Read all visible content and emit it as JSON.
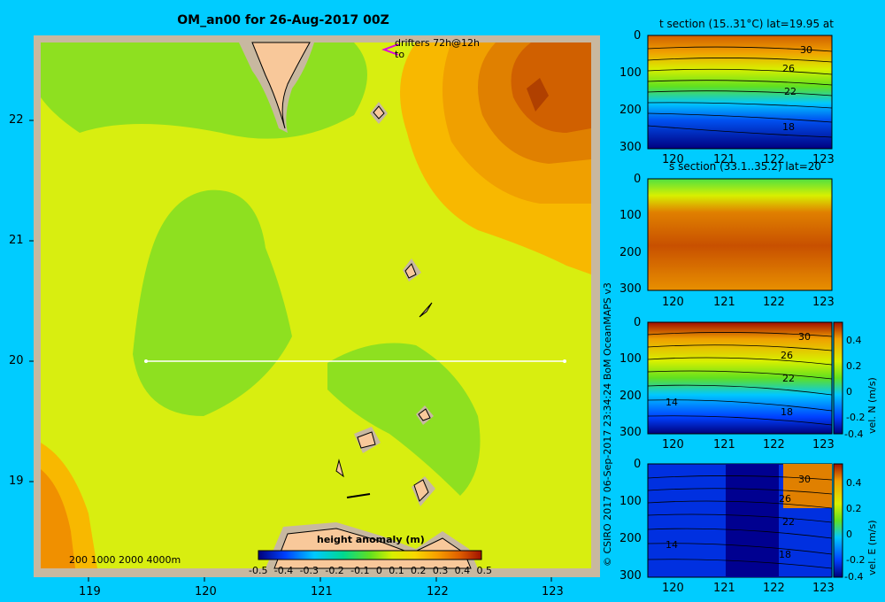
{
  "title": "OM_an00 for 26-Aug-2017 00Z",
  "map": {
    "y_ticks": [
      "22",
      "21",
      "20",
      "19"
    ],
    "x_ticks": [
      "119",
      "120",
      "121",
      "122",
      "123"
    ],
    "drifters_label": "drifters 72h@12h",
    "drifters_sub": "to",
    "depth_legend": "200  1000  2000  4000m",
    "colorbar_title": "height anomaly (m)",
    "colorbar_ticks": [
      "-0.5",
      "-0.4",
      "-0.3",
      "-0.2",
      "-0.1",
      "0",
      "0.1",
      "0.2",
      "0.3",
      "0.4",
      "0.5"
    ],
    "colors": {
      "background": "#00ccff",
      "land": "#f8c89a",
      "section_line": "#ffffff"
    }
  },
  "credit": "© CSIRO 2017   06-Sep-2017 23:34:24 BoM OceanMAPS v3",
  "panels": {
    "t_section": {
      "title": "t section (15..31°C) lat=19.95 at",
      "y_ticks": [
        "0",
        "100",
        "200",
        "300"
      ],
      "x_ticks": [
        "120",
        "121",
        "122",
        "123"
      ],
      "contour_labels": [
        "30",
        "26",
        "22",
        "18"
      ]
    },
    "s_section": {
      "title": "s section (33.1..35.2) lat=20",
      "y_ticks": [
        "0",
        "100",
        "200",
        "300"
      ],
      "x_ticks": [
        "120",
        "121",
        "122",
        "123"
      ]
    },
    "vel_n": {
      "y_ticks": [
        "0",
        "100",
        "200",
        "300"
      ],
      "x_ticks": [
        "120",
        "121",
        "122",
        "123"
      ],
      "contour_labels": [
        "30",
        "26",
        "22",
        "18",
        "14"
      ],
      "colorbar_label": "vel. N (m/s)",
      "colorbar_ticks": [
        "0.4",
        "0.2",
        "0",
        "-0.2",
        "-0.4"
      ]
    },
    "vel_e": {
      "y_ticks": [
        "0",
        "100",
        "200",
        "300"
      ],
      "x_ticks": [
        "120",
        "121",
        "122",
        "123"
      ],
      "contour_labels": [
        "30",
        "26",
        "22",
        "18",
        "14"
      ],
      "colorbar_label": "vel. E (m/s)",
      "colorbar_ticks": [
        "0.4",
        "0.2",
        "0",
        "-0.2",
        "-0.4"
      ]
    }
  }
}
